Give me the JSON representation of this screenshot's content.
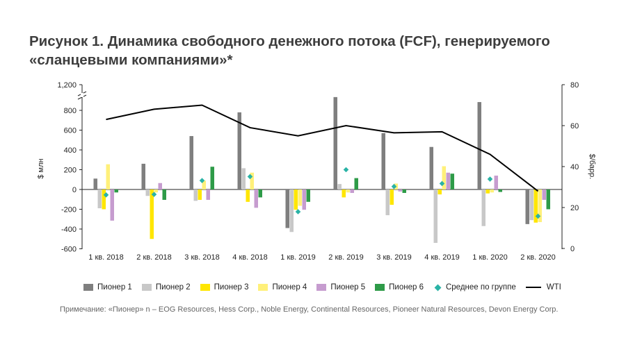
{
  "title": "Рисунок 1. Динамика свободного денежного потока (FCF), генерируемого «сланцевыми компаниями»*",
  "note": "Примечание: «Пионер» n – EOG Resources, Hess Corp., Noble Energy, Continental Resources, Pioneer Natural Resources, Devon Energy Corp.",
  "chart_data": {
    "type": "bar",
    "categories": [
      "1 кв. 2018",
      "2 кв. 2018",
      "3 кв. 2018",
      "4 кв. 2018",
      "1 кв. 2019",
      "2 кв. 2019",
      "3 кв. 2019",
      "4 кв. 2019",
      "1 кв. 2020",
      "2 кв. 2020"
    ],
    "ylabel": "$ млн",
    "y2label": "$/барр.",
    "yticks": [
      "-600",
      "-400",
      "-200",
      "0",
      "200",
      "400",
      "600",
      "800",
      "1,200"
    ],
    "y2ticks": [
      "0",
      "20",
      "40",
      "60",
      "80"
    ],
    "ylim": [
      -600,
      1200
    ],
    "y2lim": [
      0,
      80
    ],
    "y_axis_break": true,
    "series": [
      {
        "name": "Пионер 1",
        "color": "#7f7f7f",
        "values": [
          110,
          260,
          540,
          780,
          -390,
          950,
          570,
          430,
          890,
          -350
        ]
      },
      {
        "name": "Пионер 2",
        "color": "#c8c8c8",
        "values": [
          -190,
          -65,
          -115,
          215,
          -430,
          55,
          -260,
          -540,
          -370,
          -310
        ]
      },
      {
        "name": "Пионер 3",
        "color": "#ffe600",
        "values": [
          -200,
          -500,
          -105,
          -125,
          -205,
          -80,
          -155,
          -50,
          -40,
          -335
        ]
      },
      {
        "name": "Пионер 4",
        "color": "#fff07a",
        "values": [
          255,
          -30,
          90,
          170,
          -165,
          -30,
          60,
          235,
          -30,
          -330
        ]
      },
      {
        "name": "Пионер 5",
        "color": "#c69ccf",
        "values": [
          -315,
          65,
          -105,
          -185,
          -205,
          -35,
          -20,
          170,
          140,
          -105
        ]
      },
      {
        "name": "Пионер 6",
        "color": "#2e9b48",
        "values": [
          -30,
          -105,
          230,
          -80,
          -125,
          115,
          -35,
          160,
          -25,
          -200
        ]
      },
      {
        "name": "Среднее по группе",
        "type": "scatter",
        "color": "#2ab3a6",
        "values": [
          -55,
          -50,
          90,
          130,
          -225,
          200,
          30,
          60,
          105,
          -270
        ]
      },
      {
        "name": "WTI",
        "type": "line",
        "axis": "right",
        "color": "#000000",
        "values": [
          63,
          68,
          70,
          59,
          55,
          60,
          56.5,
          57,
          46,
          28
        ]
      }
    ]
  }
}
